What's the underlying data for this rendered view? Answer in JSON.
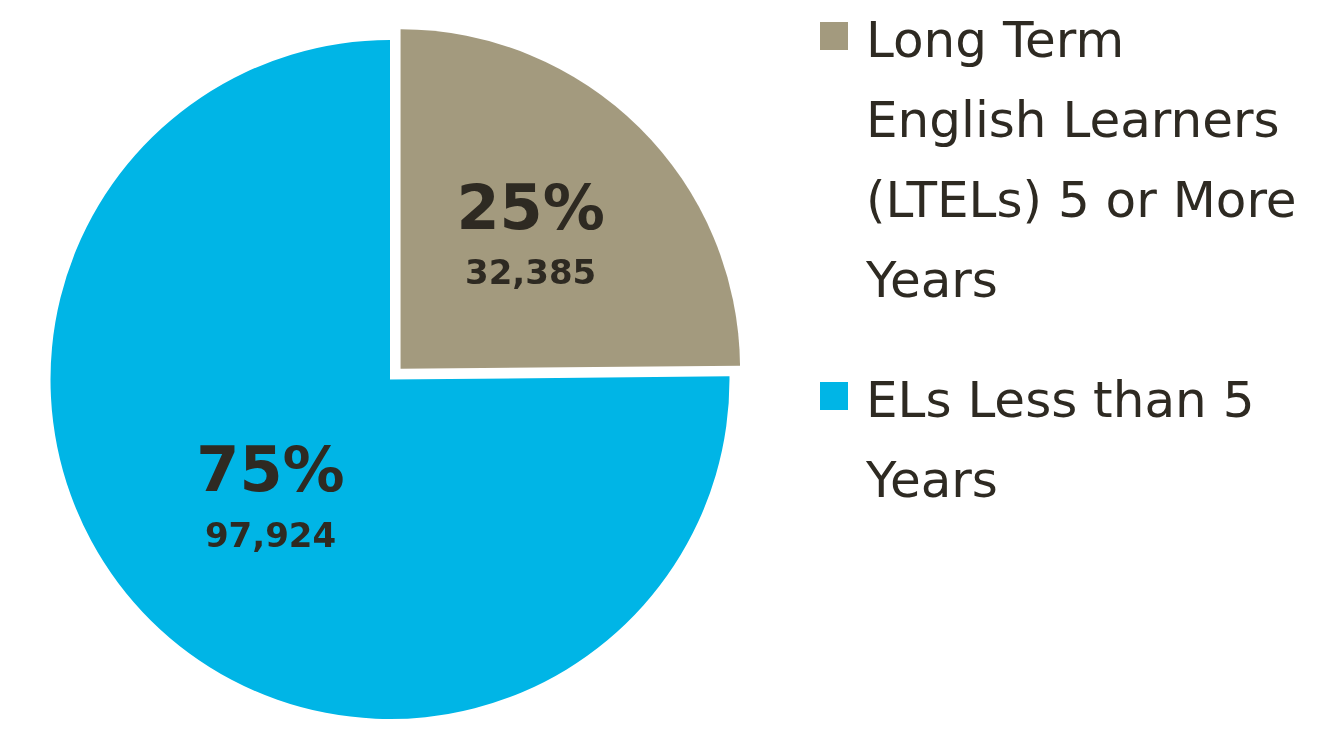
{
  "chart_data": {
    "type": "pie",
    "categories": [
      "Long Term English Learners (LTELs) 5 or More Years",
      "ELs Less than 5 Years"
    ],
    "values": [
      32385,
      97924
    ],
    "colors": [
      "#a39a7e",
      "#00b5e6"
    ],
    "value_labels": [
      "25%\n32,385",
      "75%\n97,924"
    ],
    "legend": "right"
  }
}
